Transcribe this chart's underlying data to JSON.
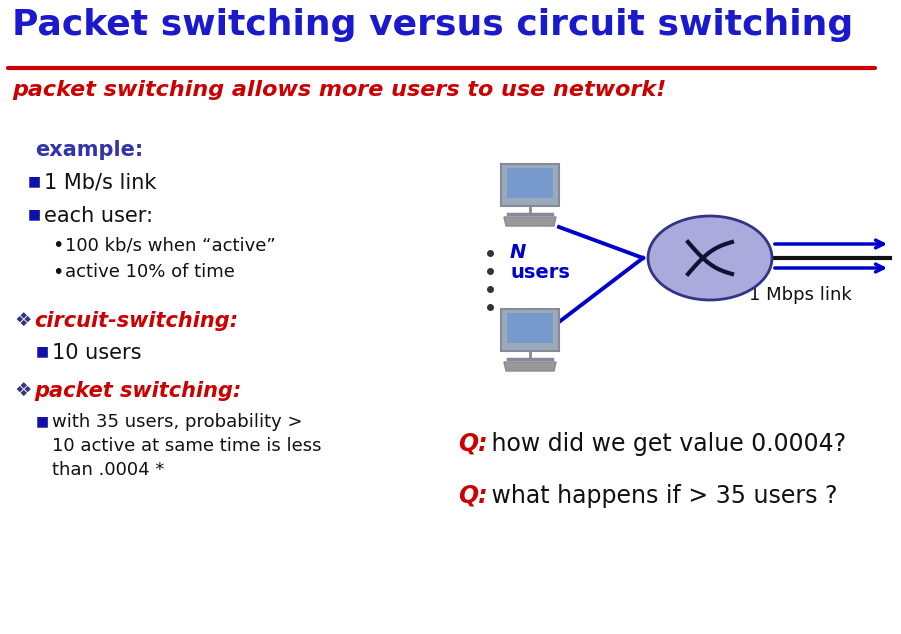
{
  "title": "Packet switching versus circuit switching",
  "subtitle": "packet switching allows more users to use network!",
  "bg_color": "#ffffff",
  "title_color": "#1a1acc",
  "title_underline_color": "#cc0000",
  "subtitle_color": "#cc0000",
  "example_label": "example:",
  "example_color": "#3333aa",
  "bullet1": "1 Mb/s link",
  "bullet2": "each user:",
  "sub_bullet1": "100 kb/s when “active”",
  "sub_bullet2": "active 10% of time",
  "circuit_label": "circuit-switching:",
  "circuit_detail": "10 users",
  "packet_label": "packet switching:",
  "packet_detail1": "with 35 users, probability >",
  "packet_detail2": "10 active at same time is less",
  "packet_detail3": "than .0004 *",
  "q1_prefix": "Q:",
  "q1_rest": " how did we get value 0.0004?",
  "q2_prefix": "Q:",
  "q2_rest": " what happens if > 35 users ?",
  "n_label_line1": "N",
  "n_label_line2": "users",
  "link_label": "1 Mbps link",
  "dark_blue": "#0000aa",
  "bullet_blue": "#1111aa",
  "mid_blue": "#3333aa",
  "red": "#cc0000",
  "ellipse_fill": "#aaaadd",
  "ellipse_edge": "#333388",
  "arrow_color": "#0000cc",
  "black_line": "#111111",
  "text_black": "#111111",
  "diamond_color": "#333388",
  "comp_frame": "#888899",
  "comp_screen": "#7799cc",
  "comp_body": "#99aabb",
  "comp_kbd": "#999999"
}
